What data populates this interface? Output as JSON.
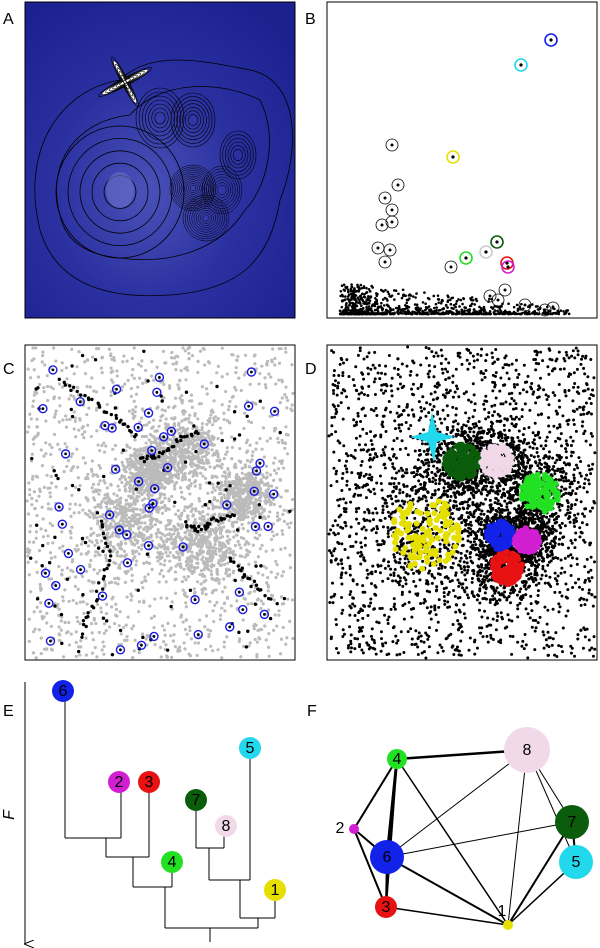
{
  "panel_labels": [
    "A",
    "B",
    "C",
    "D",
    "E",
    "F"
  ],
  "dendrogram": {
    "axis_label": "F"
  },
  "clusters": [
    {
      "label": "1",
      "color": "#e6e000"
    },
    {
      "label": "2",
      "color": "#d21fd2"
    },
    {
      "label": "3",
      "color": "#e81212"
    },
    {
      "label": "4",
      "color": "#22e022"
    },
    {
      "label": "5",
      "color": "#22d8ec"
    },
    {
      "label": "6",
      "color": "#1222e8"
    },
    {
      "label": "7",
      "color": "#0b5d0b"
    },
    {
      "label": "8",
      "color": "#f2d9ea"
    }
  ]
}
